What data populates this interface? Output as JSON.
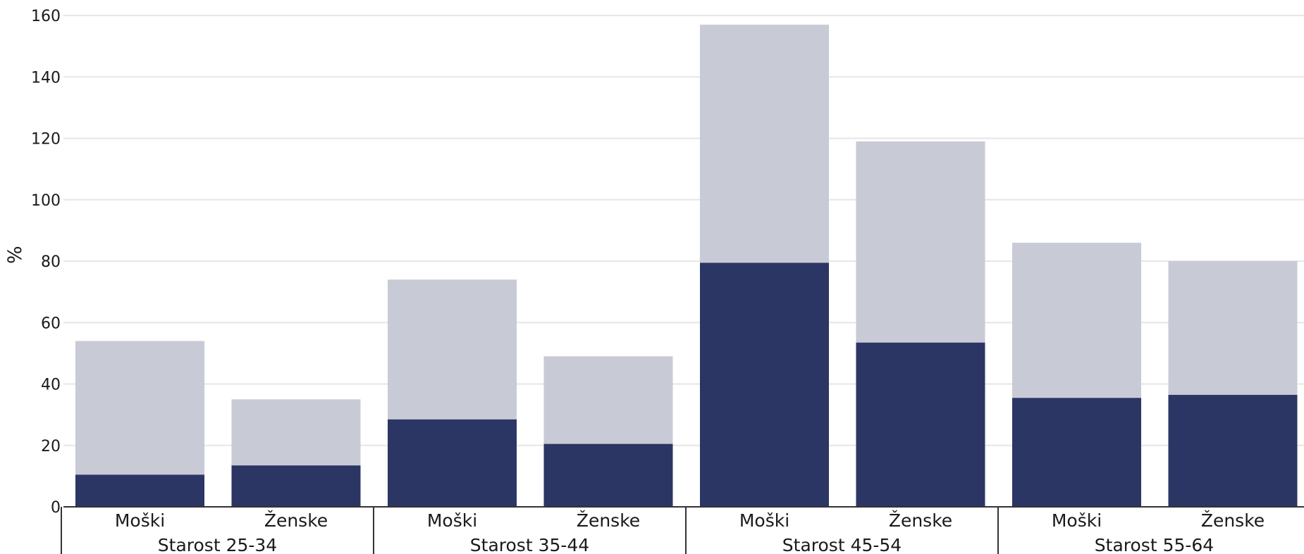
{
  "chart_data": {
    "type": "bar",
    "stacked": true,
    "ylabel": "%",
    "ylim": [
      0,
      160
    ],
    "yticks": [
      0,
      20,
      40,
      60,
      80,
      100,
      120,
      140,
      160
    ],
    "grid": true,
    "groups": [
      "Starost 25-34",
      "Starost 35-44",
      "Starost 45-54",
      "Starost 55-64"
    ],
    "subcategories": [
      "Moški",
      "Ženske"
    ],
    "categories": [
      "Moški",
      "Ženske",
      "Moški",
      "Ženske",
      "Moški",
      "Ženske",
      "Moški",
      "Ženske"
    ],
    "series": [
      {
        "color": "#2b3664",
        "values": [
          10.5,
          13.5,
          28.5,
          20.5,
          79.5,
          53.5,
          35.5,
          36.5
        ]
      },
      {
        "color": "#c8cad6",
        "values": [
          43.5,
          21.5,
          45.5,
          28.5,
          77.5,
          65.5,
          50.5,
          43.5
        ]
      }
    ],
    "totals": [
      54,
      35,
      74,
      49,
      157,
      119,
      86,
      80
    ]
  }
}
